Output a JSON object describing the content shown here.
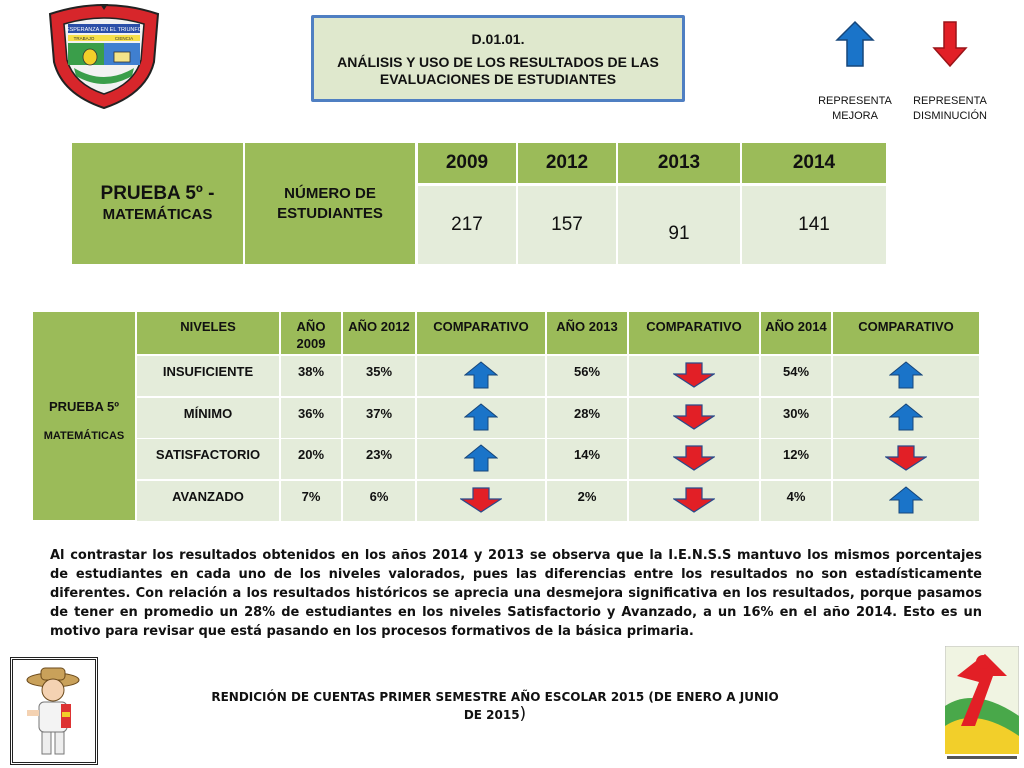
{
  "crest": {
    "lines": [
      "ESPERANZA EN EL TRIUNFO",
      "TRABAJO",
      "CIENCIA"
    ]
  },
  "header": {
    "code": "D.01.01.",
    "title": "ANÁLISIS Y USO DE LOS RESULTADOS DE LAS EVALUACIONES DE ESTUDIANTES"
  },
  "legend": {
    "up_label": "REPRESENTA MEJORA",
    "down_label": "REPRESENTA DISMINUCIÓN",
    "up_color": "#1a74c9",
    "down_color": "#e21f26"
  },
  "table1": {
    "test_line1": "PRUEBA 5º -",
    "test_line2": "MATEMÁTICAS",
    "students_label": "NÚMERO DE ESTUDIANTES",
    "years": [
      "2009",
      "2012",
      "2013",
      "2014"
    ],
    "values": [
      "217",
      "157",
      "91",
      "141"
    ]
  },
  "table2": {
    "side_line1": "PRUEBA 5º",
    "side_line2": "MATEMÁTICAS",
    "headers": [
      "NIVELES",
      "AÑO 2009",
      "AÑO 2012",
      "COMPARATIVO",
      "AÑO 2013",
      "COMPARATIVO",
      "AÑO 2014",
      "COMPARATIVO"
    ],
    "rows": [
      {
        "level": "INSUFICIENTE",
        "y2009": "38%",
        "y2012": "35%",
        "cmp1": "up",
        "y2013": "56%",
        "cmp2": "down",
        "y2014": "54%",
        "cmp3": "up"
      },
      {
        "level": "MÍNIMO",
        "y2009": "36%",
        "y2012": "37%",
        "cmp1": "up",
        "y2013": "28%",
        "cmp2": "down",
        "y2014": "30%",
        "cmp3": "up"
      },
      {
        "level": "SATISFACTORIO",
        "y2009": "20%",
        "y2012": "23%",
        "cmp1": "up",
        "y2013": "14%",
        "cmp2": "down",
        "y2014": "12%",
        "cmp3": "down"
      },
      {
        "level": "AVANZADO",
        "y2009": "7%",
        "y2012": "6%",
        "cmp1": "down",
        "y2013": "2%",
        "cmp2": "down",
        "y2014": "4%",
        "cmp3": "up"
      }
    ]
  },
  "paragraph": "Al contrastar los resultados obtenidos en los años 2014 y 2013 se observa que la I.E.N.S.S mantuvo los mismos porcentajes de estudiantes en cada uno de los niveles valorados, pues las diferencias entre los resultados no son estadísticamente diferentes. Con relación a los resultados históricos se aprecia una desmejora significativa en los resultados, porque pasamos de tener en promedio un 28% de estudiantes en los niveles Satisfactorio y Avanzado, a un 16% en el año 2014. Esto es un motivo para revisar que está pasando en los procesos formativos de la básica primaria.",
  "footer": {
    "text": "RENDICIÓN DE CUENTAS PRIMER SEMESTRE AÑO ESCOLAR 2015 (DE ENERO A JUNIO DE 2015",
    "closing": ")"
  }
}
